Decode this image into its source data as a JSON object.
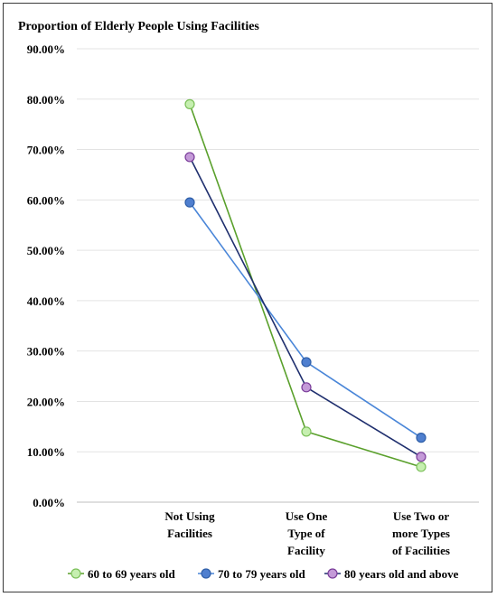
{
  "chart_data": {
    "type": "line",
    "title": "Proportion of Elderly People Using Facilities",
    "categories": [
      [
        "Not Using",
        "Facilities"
      ],
      [
        "Use One",
        "Type of",
        "Facility"
      ],
      [
        "Use Two or",
        "more Types",
        "of Facilities"
      ]
    ],
    "ylim": [
      0,
      90
    ],
    "yticks": [
      "0.00%",
      "10.00%",
      "20.00%",
      "30.00%",
      "40.00%",
      "50.00%",
      "60.00%",
      "70.00%",
      "80.00%",
      "90.00%"
    ],
    "grid": true,
    "legend_position": "bottom",
    "series": [
      {
        "name": "60 to 69 years old",
        "values": [
          79.0,
          14.0,
          7.0
        ],
        "line_color": "#5aa02c",
        "marker_fill": "#c6efb0",
        "marker_edge": "#7cc05a"
      },
      {
        "name": "70 to 79 years old",
        "values": [
          59.5,
          27.8,
          12.8
        ],
        "line_color": "#4a86d8",
        "marker_fill": "#4f7fcf",
        "marker_edge": "#2f5fa8"
      },
      {
        "name": "80 years old and above",
        "values": [
          68.5,
          22.8,
          9.0
        ],
        "line_color": "#1f2f6e",
        "marker_fill": "#c49ad8",
        "marker_edge": "#7a3d9a"
      }
    ]
  }
}
